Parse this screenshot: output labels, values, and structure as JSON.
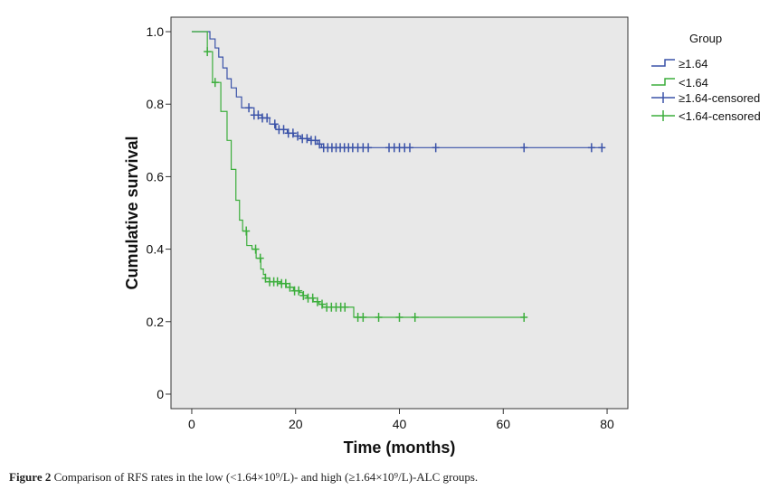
{
  "chart_data": {
    "type": "line",
    "subtype": "kaplan-meier-step",
    "title": "",
    "xlabel": "Time (months)",
    "ylabel": "Cumulative survival",
    "xlim": [
      -4,
      84
    ],
    "ylim": [
      -0.04,
      1.04
    ],
    "x_ticks": [
      0,
      20,
      40,
      60,
      80
    ],
    "y_ticks": [
      0,
      0.2,
      0.4,
      0.6,
      0.8,
      1.0
    ],
    "y_tick_labels": [
      "0",
      "0.2",
      "0.4",
      "0.6",
      "0.8",
      "1.0"
    ],
    "plot_background": "#e8e8e8",
    "legend": {
      "title": "Group",
      "placement": "right",
      "entries": [
        "≥1.64",
        "<1.64",
        "≥1.64-censored",
        "<1.64-censored"
      ]
    },
    "series": [
      {
        "name": "≥1.64",
        "color": "#3a52a8",
        "steps": [
          [
            0,
            1.0
          ],
          [
            3,
            1.0
          ],
          [
            3.5,
            0.98
          ],
          [
            4.5,
            0.955
          ],
          [
            5.2,
            0.93
          ],
          [
            6,
            0.9
          ],
          [
            6.8,
            0.87
          ],
          [
            7.6,
            0.845
          ],
          [
            8.6,
            0.82
          ],
          [
            9.6,
            0.79
          ],
          [
            11,
            0.79
          ],
          [
            12,
            0.77
          ],
          [
            13.5,
            0.762
          ],
          [
            15,
            0.745
          ],
          [
            16.2,
            0.73
          ],
          [
            18.4,
            0.72
          ],
          [
            19.6,
            0.712
          ],
          [
            21,
            0.705
          ],
          [
            22.5,
            0.7
          ],
          [
            24.2,
            0.69
          ],
          [
            25,
            0.68
          ],
          [
            79,
            0.68
          ]
        ],
        "censored_x": [
          11,
          12,
          12.8,
          13.6,
          14.5,
          16,
          16.8,
          17.7,
          18.6,
          19.5,
          20.4,
          21.3,
          22.2,
          23,
          23.8,
          24.6,
          25.4,
          26.2,
          27,
          27.8,
          28.6,
          29.4,
          30.2,
          31,
          32,
          33,
          34,
          38,
          39,
          40,
          41,
          42,
          47,
          64,
          77,
          79
        ]
      },
      {
        "name": "<1.64",
        "color": "#3cae3c",
        "steps": [
          [
            0,
            1.0
          ],
          [
            2.5,
            1.0
          ],
          [
            3,
            0.945
          ],
          [
            4,
            0.86
          ],
          [
            5,
            0.86
          ],
          [
            5.6,
            0.78
          ],
          [
            6.8,
            0.7
          ],
          [
            7.6,
            0.62
          ],
          [
            8.5,
            0.535
          ],
          [
            9.2,
            0.48
          ],
          [
            9.8,
            0.45
          ],
          [
            10.6,
            0.41
          ],
          [
            11.6,
            0.4
          ],
          [
            12.4,
            0.375
          ],
          [
            13.3,
            0.345
          ],
          [
            13.8,
            0.33
          ],
          [
            14.2,
            0.32
          ],
          [
            15,
            0.31
          ],
          [
            17,
            0.305
          ],
          [
            18.2,
            0.295
          ],
          [
            19.6,
            0.285
          ],
          [
            20.8,
            0.28
          ],
          [
            21.4,
            0.272
          ],
          [
            22.2,
            0.265
          ],
          [
            23.4,
            0.255
          ],
          [
            24.5,
            0.248
          ],
          [
            25.2,
            0.24
          ],
          [
            27.2,
            0.24
          ],
          [
            31,
            0.24
          ],
          [
            31.2,
            0.212
          ],
          [
            64,
            0.212
          ]
        ],
        "censored_x": [
          3,
          4.5,
          10.5,
          12.3,
          13.2,
          14.2,
          15,
          15.8,
          16.5,
          17.3,
          18.1,
          18.9,
          19.8,
          20.6,
          21.5,
          22.4,
          23.3,
          24.2,
          25.1,
          26,
          26.9,
          27.8,
          28.7,
          29.5,
          32,
          33,
          36,
          40,
          43,
          64
        ]
      }
    ]
  },
  "caption": {
    "label": "Figure 2",
    "text": "Comparison of RFS rates in the low (<1.64×10⁹/L)- and high (≥1.64×10⁹/L)-ALC groups."
  }
}
